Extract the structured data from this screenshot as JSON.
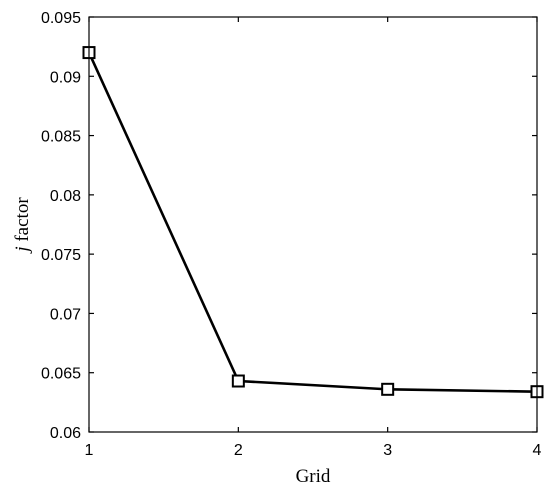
{
  "chart_data": {
    "type": "line",
    "xlabel": "Grid",
    "ylabel_italic": "j",
    "ylabel_rest": " factor",
    "x": [
      1,
      2,
      3,
      4
    ],
    "series": [
      {
        "values": [
          0.092,
          0.0643,
          0.0636,
          0.0634
        ],
        "marker": "square-open",
        "color": "#000000"
      }
    ],
    "xlim": [
      1,
      4
    ],
    "ylim": [
      0.06,
      0.095
    ],
    "xticks": [
      1,
      2,
      3,
      4
    ],
    "xtick_labels": [
      "1",
      "2",
      "3",
      "4"
    ],
    "yticks": [
      0.06,
      0.065,
      0.07,
      0.075,
      0.08,
      0.085,
      0.09,
      0.095
    ],
    "ytick_labels": [
      "0.06",
      "0.065",
      "0.07",
      "0.075",
      "0.08",
      "0.085",
      "0.09",
      "0.095"
    ],
    "grid": false,
    "legend": "none"
  }
}
